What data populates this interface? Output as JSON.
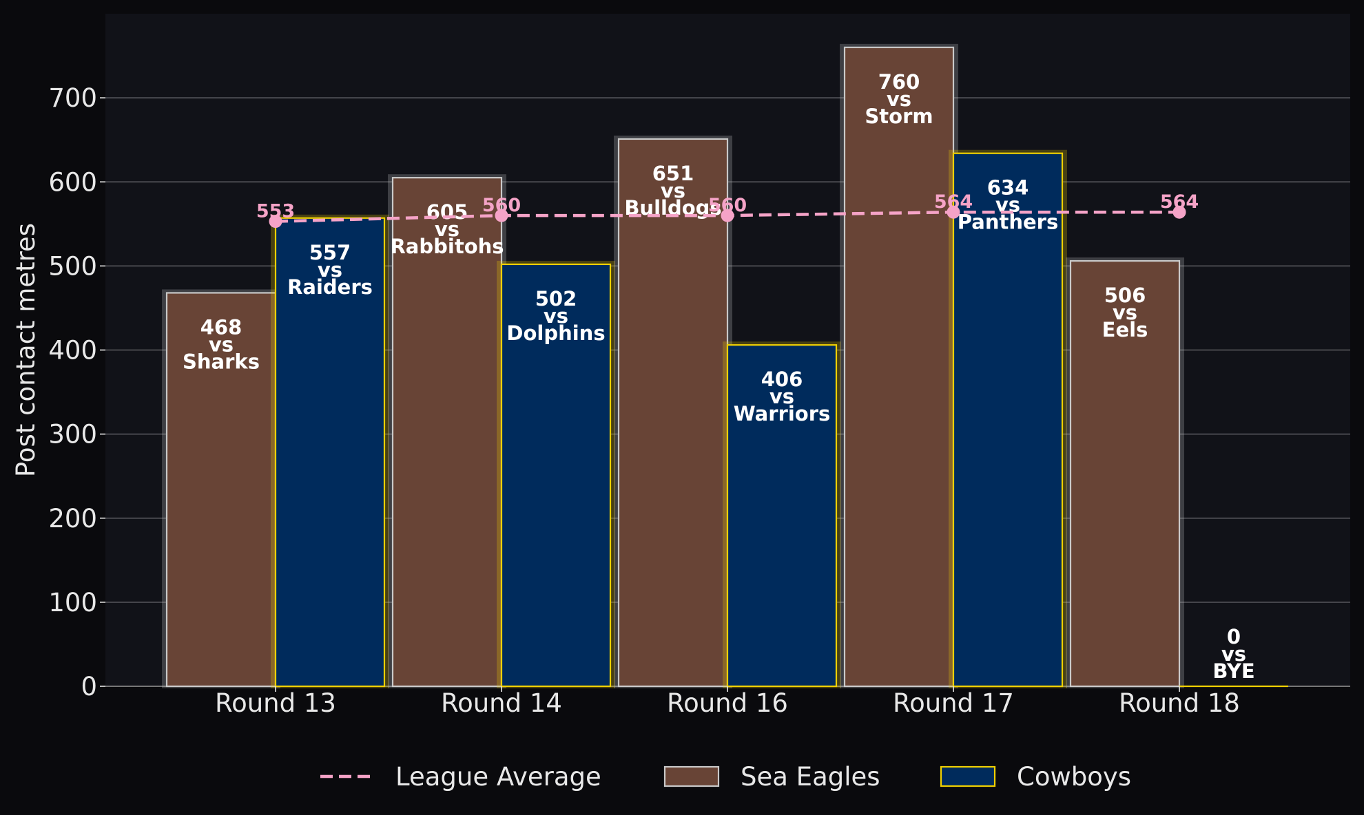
{
  "chart_data": {
    "type": "bar",
    "categories": [
      "Round 13",
      "Round 14",
      "Round 16",
      "Round 17",
      "Round 18"
    ],
    "series": [
      {
        "name": "Sea Eagles",
        "values": [
          468,
          605,
          651,
          760,
          506
        ],
        "opponents": [
          "Sharks",
          "Rabbitohs",
          "Bulldogs",
          "Storm",
          "Eels"
        ],
        "fill": "#684436",
        "edge": "#c9c9c9"
      },
      {
        "name": "Cowboys",
        "values": [
          557,
          502,
          406,
          634,
          0
        ],
        "opponents": [
          "Raiders",
          "Dolphins",
          "Warriors",
          "Panthers",
          "BYE"
        ],
        "fill": "#002b5c",
        "edge": "#f0d000"
      }
    ],
    "line": {
      "name": "League Average",
      "values": [
        553,
        560,
        560,
        564,
        564
      ],
      "color": "#f5a3c7"
    },
    "vs_word": "vs",
    "ylabel": "Post contact metres",
    "xlabel": "",
    "ylim": [
      0,
      800
    ],
    "yticks": [
      0,
      100,
      200,
      300,
      400,
      500,
      600,
      700
    ],
    "grid": true,
    "legend_placement": "bottom-center",
    "colors": {
      "page_bg": "#0a0a0d",
      "plot_bg": "#111218",
      "grid": "#5e5e63",
      "text": "#e8e8e8"
    }
  }
}
